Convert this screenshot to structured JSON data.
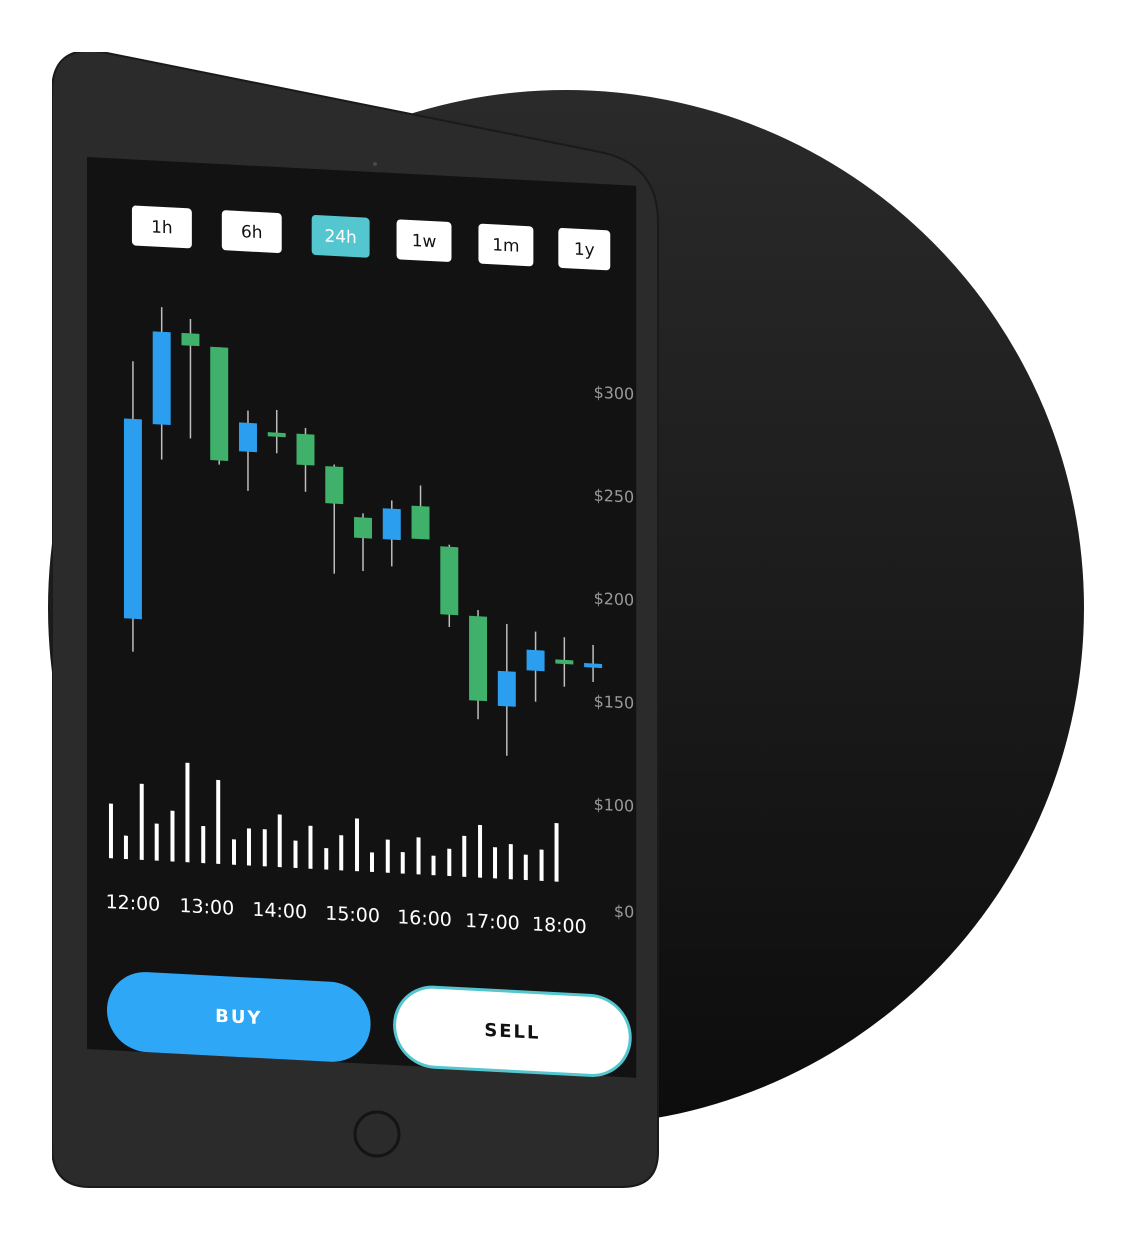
{
  "timeframes": [
    {
      "label": "1h",
      "active": false
    },
    {
      "label": "6h",
      "active": false
    },
    {
      "label": "24h",
      "active": true
    },
    {
      "label": "1w",
      "active": false
    },
    {
      "label": "1m",
      "active": false
    },
    {
      "label": "1y",
      "active": false
    }
  ],
  "actions": {
    "buy_label": "BUY",
    "sell_label": "SELL"
  },
  "colors": {
    "accent_blue": "#2ea7f7",
    "accent_teal": "#53c6cf",
    "candle_green": "#3fb16b",
    "candle_blue": "#2b9ef0",
    "screen_bg": "#121212",
    "device_body": "#2b2b2b"
  },
  "chart_data": {
    "type": "candlestick",
    "y_ticks": [
      "$300",
      "$250",
      "$200",
      "$150",
      "$100",
      "$0"
    ],
    "x_ticks": [
      "12:00",
      "13:00",
      "14:00",
      "15:00",
      "16:00",
      "17:00",
      "18:00"
    ],
    "candles": [
      {
        "color": "blue",
        "open": 178,
        "close": 275,
        "high": 303,
        "low": 162
      },
      {
        "color": "blue",
        "open": 273,
        "close": 318,
        "high": 330,
        "low": 256
      },
      {
        "color": "green",
        "open": 318,
        "close": 312,
        "high": 325,
        "low": 267
      },
      {
        "color": "green",
        "open": 312,
        "close": 257,
        "high": 312,
        "low": 255
      },
      {
        "color": "blue",
        "open": 262,
        "close": 276,
        "high": 282,
        "low": 243
      },
      {
        "color": "green",
        "open": 272,
        "close": 270,
        "high": 283,
        "low": 262
      },
      {
        "color": "green",
        "open": 272,
        "close": 257,
        "high": 275,
        "low": 244
      },
      {
        "color": "green",
        "open": 257,
        "close": 239,
        "high": 258,
        "low": 205
      },
      {
        "color": "green",
        "open": 233,
        "close": 223,
        "high": 235,
        "low": 207
      },
      {
        "color": "blue",
        "open": 223,
        "close": 238,
        "high": 242,
        "low": 210
      },
      {
        "color": "green",
        "open": 240,
        "close": 224,
        "high": 250,
        "low": 224
      },
      {
        "color": "green",
        "open": 221,
        "close": 188,
        "high": 222,
        "low": 182
      },
      {
        "color": "green",
        "open": 188,
        "close": 147,
        "high": 191,
        "low": 138
      },
      {
        "color": "blue",
        "open": 145,
        "close": 162,
        "high": 185,
        "low": 121
      },
      {
        "color": "blue",
        "open": 163,
        "close": 173,
        "high": 182,
        "low": 148
      },
      {
        "color": "green",
        "open": 169,
        "close": 167,
        "high": 180,
        "low": 156
      },
      {
        "color": "blue",
        "open": 166,
        "close": 168,
        "high": 177,
        "low": 159
      }
    ],
    "volume": [
      {
        "a": 28,
        "b": 12
      },
      {
        "a": 39,
        "b": 19
      },
      {
        "a": 26,
        "b": 51
      },
      {
        "a": 19,
        "b": 43
      },
      {
        "a": 13,
        "b": 19
      },
      {
        "a": 19,
        "b": 27
      },
      {
        "a": 14,
        "b": 22
      },
      {
        "a": 11,
        "b": 18
      },
      {
        "a": 27,
        "b": 10
      },
      {
        "a": 17,
        "b": 11
      },
      {
        "a": 19,
        "b": 10
      },
      {
        "a": 14,
        "b": 21
      },
      {
        "a": 27,
        "b": 16
      },
      {
        "a": 18,
        "b": 13
      },
      {
        "a": 16,
        "b": 30
      }
    ]
  }
}
